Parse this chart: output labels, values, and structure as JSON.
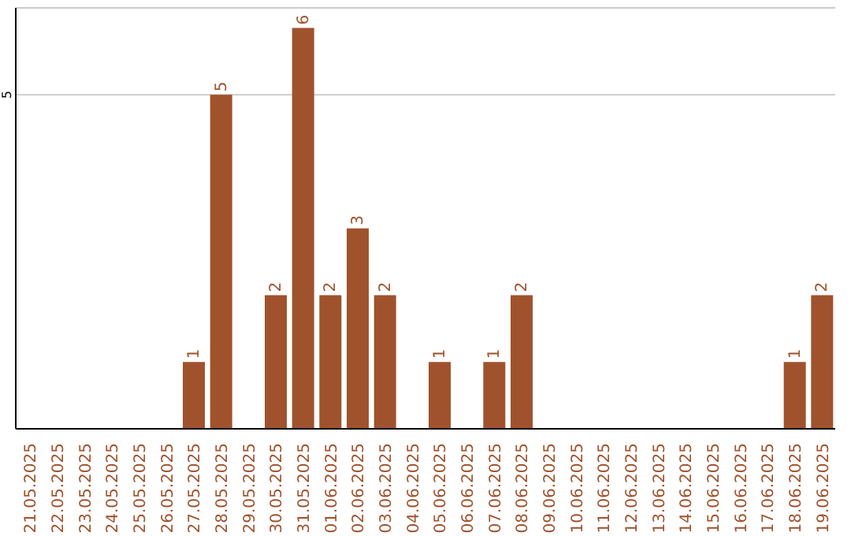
{
  "chart_data": {
    "type": "bar",
    "categories": [
      "21.05.2025",
      "22.05.2025",
      "23.05.2025",
      "24.05.2025",
      "25.05.2025",
      "26.05.2025",
      "27.05.2025",
      "28.05.2025",
      "29.05.2025",
      "30.05.2025",
      "31.05.2025",
      "01.06.2025",
      "02.06.2025",
      "03.06.2025",
      "04.06.2025",
      "05.06.2025",
      "06.06.2025",
      "07.06.2025",
      "08.06.2025",
      "09.06.2025",
      "10.06.2025",
      "11.06.2025",
      "12.06.2025",
      "13.06.2025",
      "14.06.2025",
      "15.06.2025",
      "16.06.2025",
      "17.06.2025",
      "18.06.2025",
      "19.06.2025"
    ],
    "values": [
      0,
      0,
      0,
      0,
      0,
      0,
      1,
      5,
      0,
      2,
      6,
      2,
      3,
      2,
      0,
      1,
      0,
      1,
      2,
      0,
      0,
      0,
      0,
      0,
      0,
      0,
      0,
      0,
      1,
      2
    ],
    "value_labels": [
      null,
      null,
      null,
      null,
      null,
      null,
      "1",
      "5",
      null,
      "2",
      "6",
      "2",
      "3",
      "2",
      null,
      "1",
      null,
      "1",
      "2",
      null,
      null,
      null,
      null,
      null,
      null,
      null,
      null,
      null,
      "1",
      "2"
    ],
    "color": "#a0522d",
    "ylim": [
      0,
      6.3
    ],
    "yticks": [
      5
    ],
    "grid": "y"
  }
}
